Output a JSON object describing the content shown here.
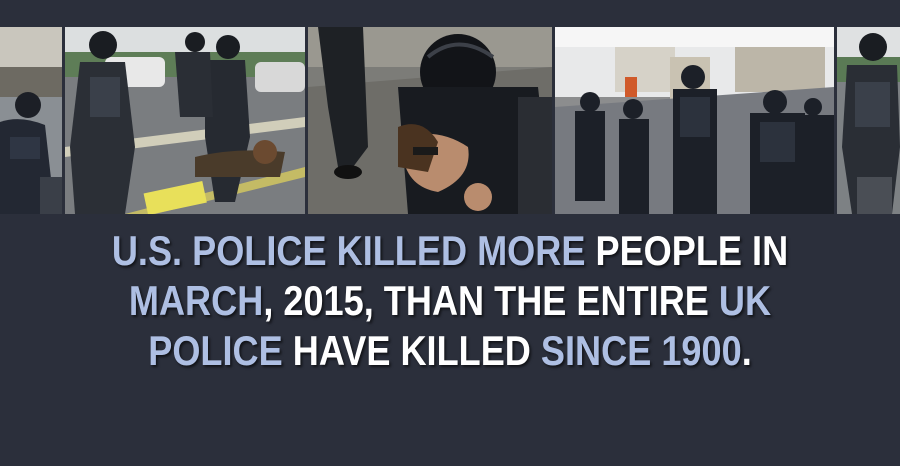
{
  "colors": {
    "background": "#2b2f3b",
    "highlight_text": "#aebfe3",
    "plain_text": "#ffffff"
  },
  "photos": [
    {
      "subject": "riot police officer crouching"
    },
    {
      "subject": "officers subduing protester on road"
    },
    {
      "subject": "officer pinning man to ground"
    },
    {
      "subject": "riot police line in street"
    },
    {
      "subject": "armed police officer"
    }
  ],
  "caption": {
    "line1": [
      {
        "text": "U.S. Police Killed More",
        "style": "highlight"
      },
      {
        "text": " People in",
        "style": "plain"
      }
    ],
    "line2": [
      {
        "text": "March",
        "style": "highlight"
      },
      {
        "text": ", 2015, than the entire ",
        "style": "plain"
      },
      {
        "text": "UK",
        "style": "highlight"
      }
    ],
    "line3": [
      {
        "text": "Police",
        "style": "highlight"
      },
      {
        "text": " have killed ",
        "style": "plain"
      },
      {
        "text": "since 1900",
        "style": "highlight"
      },
      {
        "text": ".",
        "style": "plain"
      }
    ]
  }
}
